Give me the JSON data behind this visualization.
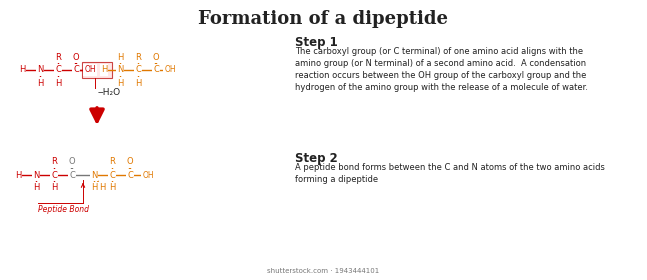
{
  "title": "Formation of a dipeptide",
  "title_fontsize": 13,
  "background_color": "#ffffff",
  "red": "#cc0000",
  "orange": "#e07800",
  "black": "#222222",
  "gray": "#777777",
  "pink_box": "#e08080",
  "step1_title": "Step 1",
  "step1_text": "The carboxyl group (or C terminal) of one amino acid aligns with the\namino group (or N terminal) of a second amino acid.  A condensation\nreaction occurs between the OH group of the carboxyl group and the\nhydrogen of the amino group with the release of a molecule of water.",
  "step2_title": "Step 2",
  "step2_text": "A peptide bond forms between the C and N atoms of the two amino acids\nforming a dipeptide",
  "watermark": "shutterstock.com · 1943444101"
}
